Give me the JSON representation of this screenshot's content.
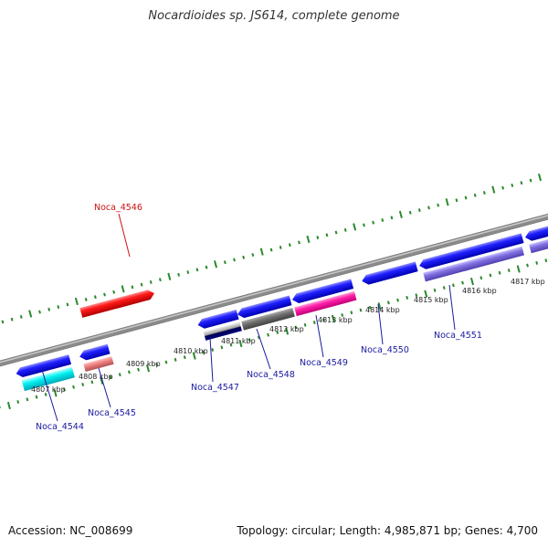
{
  "title": "Nocardioides sp. JS614, complete genome",
  "footer": {
    "accession": "Accession: NC_008699",
    "topology": "Topology: circular; Length: 4,985,871 bp; Genes: 4,700"
  },
  "colors": {
    "backbone": "#8a8a8a",
    "tick_marks": "#2a8a2a",
    "label_blue": "#1a1aa0",
    "label_red": "#cc1111",
    "gene_blue": "#1a1ae6",
    "gene_red": "#e60000"
  },
  "scale_labels": [
    "4807 kbp",
    "4808 kbp",
    "4809 kbp",
    "4810 kbp",
    "4811 kbp",
    "4812 kbp",
    "4813 kbp",
    "4814 kbp",
    "4815 kbp",
    "4816 kbp",
    "4817 kbp"
  ],
  "gene_labels": [
    {
      "text": "Noca_4544",
      "color": "blue"
    },
    {
      "text": "Noca_4545",
      "color": "blue"
    },
    {
      "text": "Noca_4546",
      "color": "red"
    },
    {
      "text": "Noca_4547",
      "color": "blue"
    },
    {
      "text": "Noca_4548",
      "color": "blue"
    },
    {
      "text": "Noca_4549",
      "color": "blue"
    },
    {
      "text": "Noca_4550",
      "color": "blue"
    },
    {
      "text": "Noca_4551",
      "color": "blue"
    }
  ]
}
